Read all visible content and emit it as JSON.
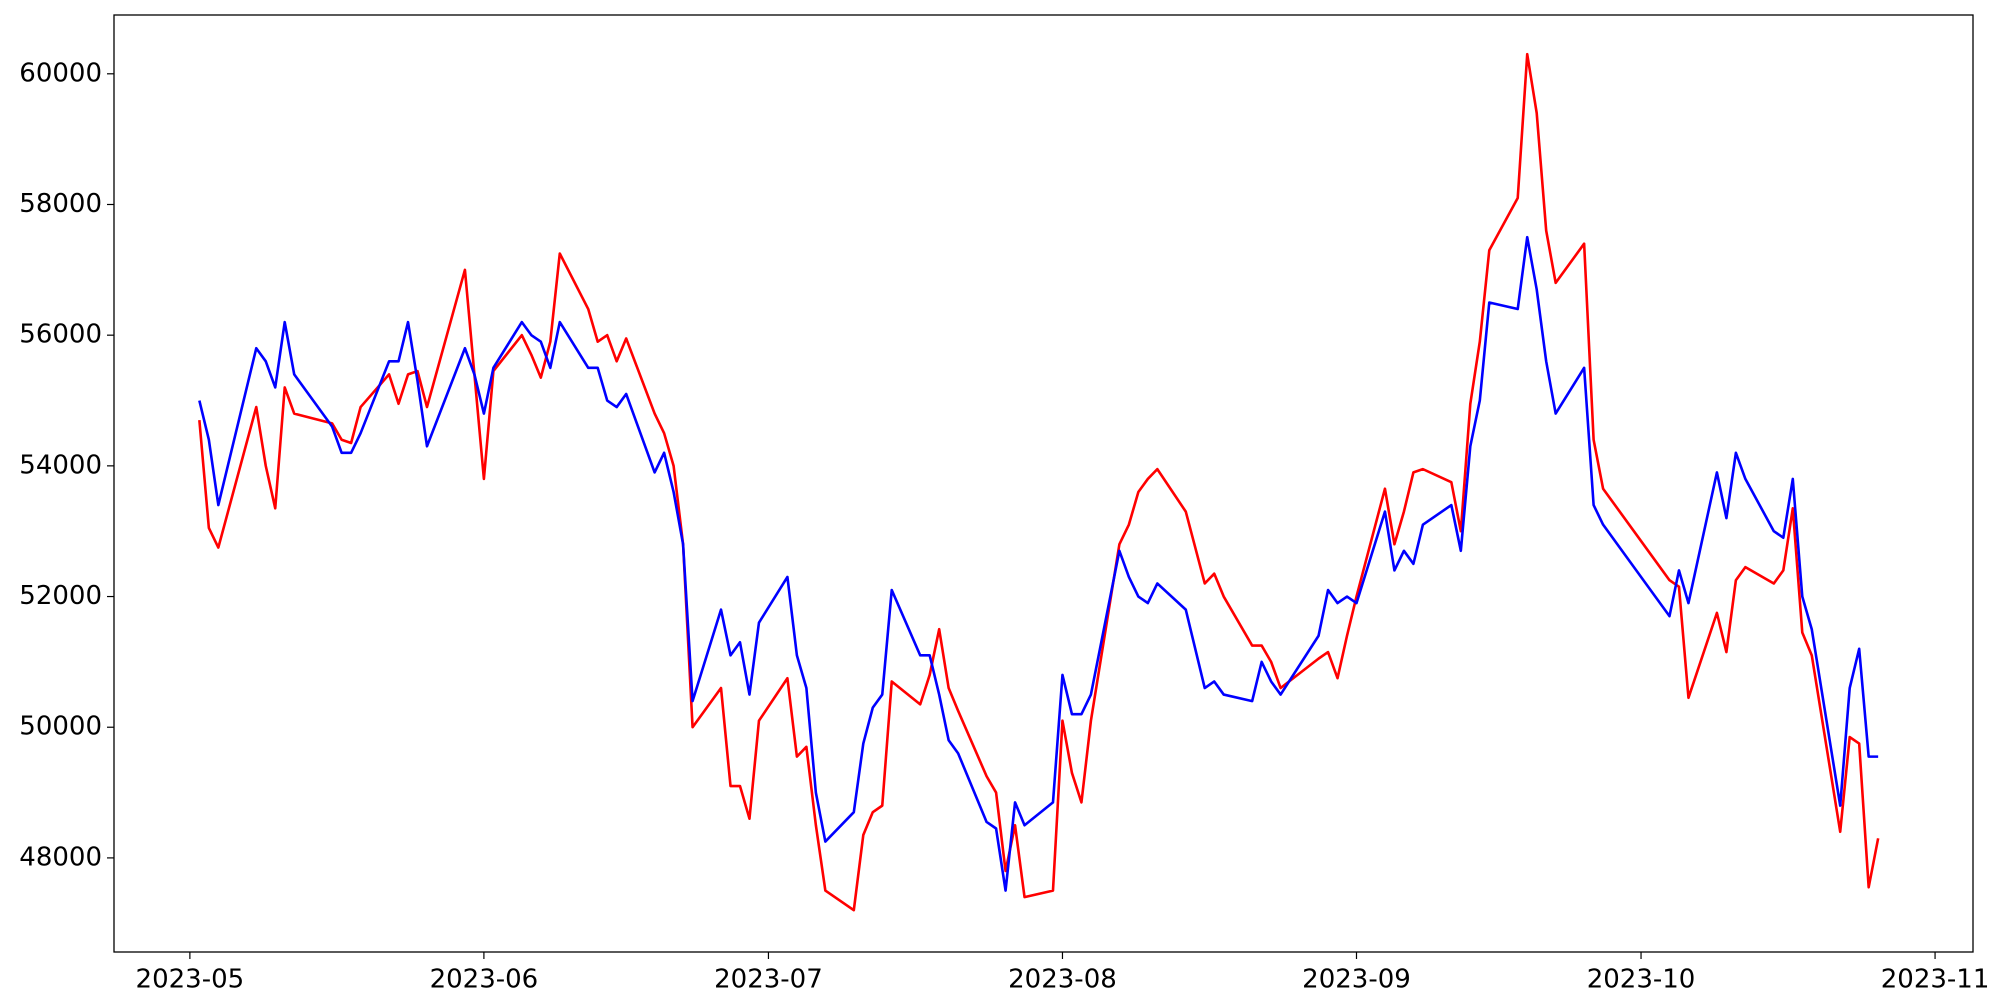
{
  "chart_data": {
    "type": "line",
    "x": [
      "2023-05-02",
      "2023-05-03",
      "2023-05-04",
      "2023-05-08",
      "2023-05-09",
      "2023-05-10",
      "2023-05-11",
      "2023-05-12",
      "2023-05-16",
      "2023-05-17",
      "2023-05-18",
      "2023-05-19",
      "2023-05-22",
      "2023-05-23",
      "2023-05-24",
      "2023-05-25",
      "2023-05-26",
      "2023-05-30",
      "2023-05-31",
      "2023-06-01",
      "2023-06-02",
      "2023-06-05",
      "2023-06-06",
      "2023-06-07",
      "2023-06-08",
      "2023-06-09",
      "2023-06-12",
      "2023-06-13",
      "2023-06-14",
      "2023-06-15",
      "2023-06-16",
      "2023-06-19",
      "2023-06-20",
      "2023-06-21",
      "2023-06-22",
      "2023-06-23",
      "2023-06-26",
      "2023-06-27",
      "2023-06-28",
      "2023-06-29",
      "2023-06-30",
      "2023-07-03",
      "2023-07-04",
      "2023-07-05",
      "2023-07-06",
      "2023-07-07",
      "2023-07-10",
      "2023-07-11",
      "2023-07-12",
      "2023-07-13",
      "2023-07-14",
      "2023-07-17",
      "2023-07-18",
      "2023-07-19",
      "2023-07-20",
      "2023-07-21",
      "2023-07-24",
      "2023-07-25",
      "2023-07-26",
      "2023-07-27",
      "2023-07-28",
      "2023-07-31",
      "2023-08-01",
      "2023-08-02",
      "2023-08-03",
      "2023-08-04",
      "2023-08-07",
      "2023-08-08",
      "2023-08-09",
      "2023-08-10",
      "2023-08-11",
      "2023-08-14",
      "2023-08-16",
      "2023-08-17",
      "2023-08-18",
      "2023-08-21",
      "2023-08-22",
      "2023-08-23",
      "2023-08-24",
      "2023-08-28",
      "2023-08-29",
      "2023-08-30",
      "2023-08-31",
      "2023-09-01",
      "2023-09-04",
      "2023-09-05",
      "2023-09-06",
      "2023-09-07",
      "2023-09-08",
      "2023-09-11",
      "2023-09-12",
      "2023-09-13",
      "2023-09-14",
      "2023-09-15",
      "2023-09-18",
      "2023-09-19",
      "2023-09-20",
      "2023-09-21",
      "2023-09-22",
      "2023-09-25",
      "2023-09-26",
      "2023-09-27",
      "2023-10-04",
      "2023-10-05",
      "2023-10-06",
      "2023-10-09",
      "2023-10-10",
      "2023-10-11",
      "2023-10-12",
      "2023-10-15",
      "2023-10-16",
      "2023-10-17",
      "2023-10-18",
      "2023-10-19",
      "2023-10-22",
      "2023-10-23",
      "2023-10-24",
      "2023-10-25",
      "2023-10-26"
    ],
    "series": [
      {
        "color": "#ff0000",
        "values": [
          54700,
          53050,
          52750,
          54900,
          54000,
          53350,
          55200,
          54800,
          54650,
          54400,
          54350,
          54900,
          55400,
          54950,
          55400,
          55450,
          54900,
          57000,
          55400,
          53800,
          55450,
          56000,
          55700,
          55350,
          55900,
          57250,
          56400,
          55900,
          56000,
          55600,
          55950,
          54800,
          54500,
          54000,
          52800,
          50000,
          50600,
          49100,
          49100,
          48600,
          50100,
          50750,
          49550,
          49700,
          48500,
          47500,
          47200,
          48350,
          48700,
          48800,
          50700,
          50350,
          50800,
          51500,
          50600,
          50250,
          49250,
          49000,
          47800,
          48500,
          47400,
          47500,
          50100,
          49300,
          48850,
          50100,
          52800,
          53100,
          53600,
          53800,
          53950,
          53300,
          52200,
          52350,
          52000,
          51250,
          51250,
          51000,
          50600,
          51050,
          51150,
          50750,
          51400,
          52000,
          53650,
          52800,
          53300,
          53900,
          53950,
          53750,
          53000,
          54950,
          55900,
          57300,
          58100,
          60300,
          59400,
          57600,
          56800,
          57400,
          54400,
          53650,
          52250,
          52150,
          50450,
          51750,
          51150,
          52250,
          52450,
          52200,
          52400,
          53350,
          51450,
          51100,
          48400,
          49850,
          49750,
          47550,
          48300
        ]
      },
      {
        "color": "#0000ff",
        "values": [
          55000,
          54400,
          53400,
          55800,
          55600,
          55200,
          56200,
          55400,
          54600,
          54200,
          54200,
          54500,
          55600,
          55600,
          56200,
          55300,
          54300,
          55800,
          55400,
          54800,
          55500,
          56200,
          56000,
          55900,
          55500,
          56200,
          55500,
          55500,
          55000,
          54900,
          55100,
          53900,
          54200,
          53600,
          52800,
          50400,
          51800,
          51100,
          51300,
          50500,
          51600,
          52300,
          51100,
          50600,
          49000,
          48250,
          48700,
          49750,
          50300,
          50500,
          52100,
          51100,
          51100,
          50500,
          49800,
          49600,
          48550,
          48450,
          47500,
          48850,
          48500,
          48850,
          50800,
          50200,
          50200,
          50500,
          52700,
          52300,
          52000,
          51900,
          52200,
          51800,
          50600,
          50700,
          50500,
          50400,
          51000,
          50700,
          50500,
          51400,
          52100,
          51900,
          52000,
          51900,
          53300,
          52400,
          52700,
          52500,
          53100,
          53400,
          52700,
          54300,
          55000,
          56500,
          56400,
          57500,
          56700,
          55600,
          54800,
          55500,
          53400,
          53100,
          51700,
          52400,
          51900,
          53900,
          53200,
          54200,
          53800,
          53000,
          52900,
          53800,
          52000,
          51500,
          48800,
          50600,
          51200,
          49550,
          49550
        ]
      }
    ],
    "xlim": [
      "2023-04-23",
      "2023-11-05"
    ],
    "xticks": [
      "2023-05",
      "2023-06",
      "2023-07",
      "2023-08",
      "2023-09",
      "2023-10",
      "2023-11"
    ],
    "ylim": [
      46560,
      60900
    ],
    "yticks": [
      48000,
      50000,
      52000,
      54000,
      56000,
      58000,
      60000
    ],
    "grid": false
  }
}
